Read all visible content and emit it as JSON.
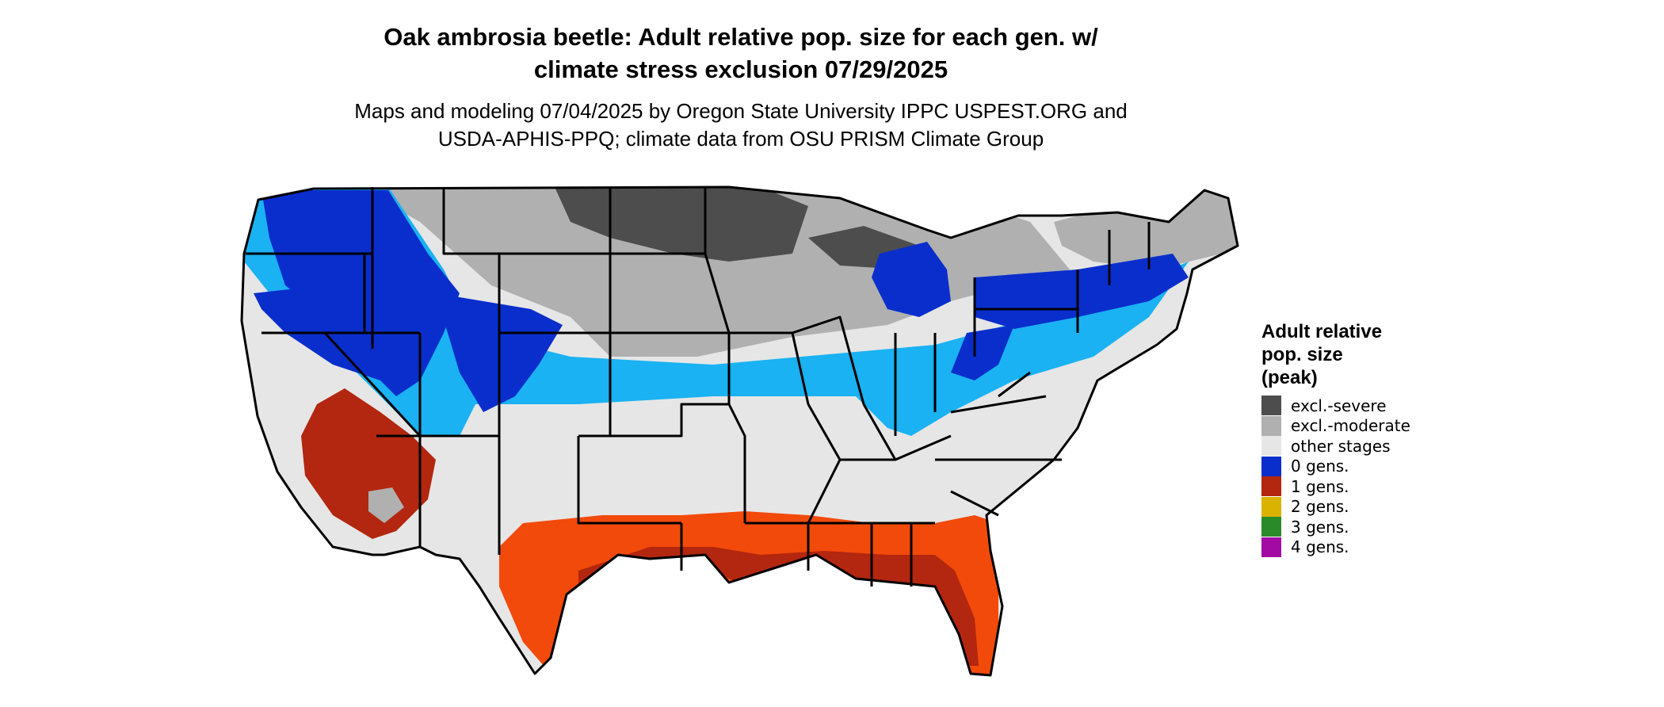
{
  "title": {
    "line1": "Oak ambrosia beetle: Adult relative pop. size for each gen. w/",
    "line2": "climate stress exclusion 07/29/2025"
  },
  "subtitle": {
    "line1": "Maps and modeling 07/04/2025 by Oregon State University IPPC USPEST.ORG and",
    "line2": "USDA-APHIS-PPQ; climate data from OSU PRISM Climate Group"
  },
  "legend": {
    "title_line1": "Adult relative",
    "title_line2": "pop. size",
    "title_line3": "(peak)",
    "items": [
      {
        "label": "excl.-severe",
        "color": "#4d4d4d"
      },
      {
        "label": "excl.-moderate",
        "color": "#b0b0b0"
      },
      {
        "label": "other stages",
        "color": "#e6e6e6"
      },
      {
        "label": "0 gens.",
        "color": "#0a2ecc"
      },
      {
        "label": "1 gens.",
        "color": "#b3260f"
      },
      {
        "label": "2 gens.",
        "color": "#d9b300"
      },
      {
        "label": "3 gens.",
        "color": "#2a8a2a"
      },
      {
        "label": "4 gens.",
        "color": "#a30aa3"
      }
    ]
  },
  "map": {
    "colors": {
      "light_blue": "#1ab2f2",
      "blue": "#0a2ecc",
      "orange": "#f24a0a",
      "dark_red": "#b3260f",
      "other": "#e6e6e6",
      "moderate": "#b0b0b0",
      "severe": "#4d4d4d"
    }
  }
}
